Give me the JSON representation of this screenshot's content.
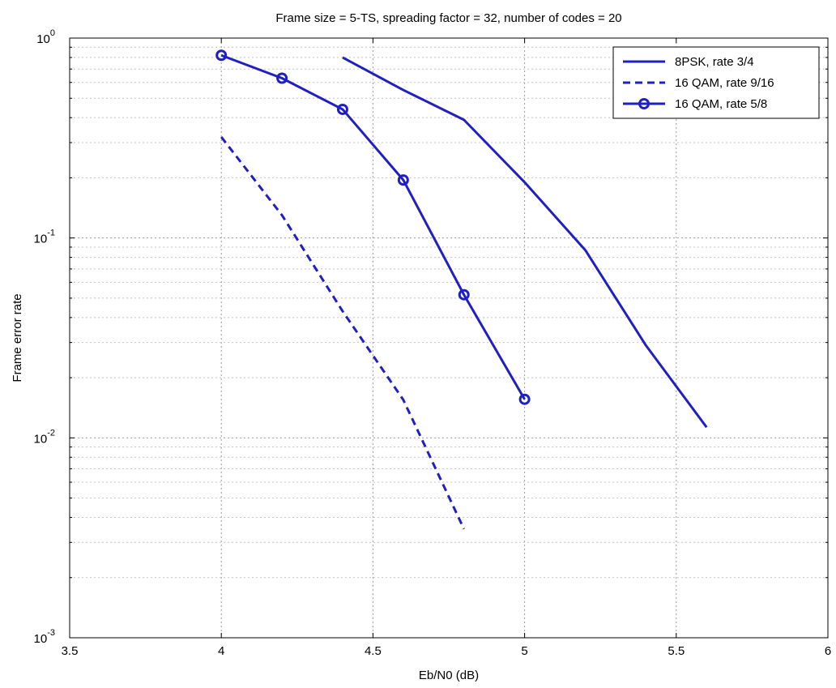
{
  "chart_data": {
    "type": "line",
    "title": "Frame size = 5-TS, spreading factor = 32, number of codes = 20",
    "xlabel": "Eb/N0 (dB)",
    "ylabel": "Frame error rate",
    "xlim": [
      3.5,
      6
    ],
    "ylim": [
      0.001,
      1
    ],
    "yscale": "log",
    "grid": true,
    "legend_position": "top-right",
    "x_ticks": [
      "3.5",
      "4",
      "4.5",
      "5",
      "5.5",
      "6"
    ],
    "y_ticks": [
      {
        "base": "10",
        "exp": "0",
        "value": 1
      },
      {
        "base": "10",
        "exp": "-1",
        "value": 0.1
      },
      {
        "base": "10",
        "exp": "-2",
        "value": 0.01
      },
      {
        "base": "10",
        "exp": "-3",
        "value": 0.001
      }
    ],
    "series": [
      {
        "name": "8PSK, rate 3/4",
        "color": "#2020c0",
        "line_style": "solid",
        "marker": "none",
        "x": [
          4.4,
          4.6,
          4.8,
          5.0,
          5.2,
          5.4,
          5.6
        ],
        "y": [
          0.8,
          0.55,
          0.39,
          0.19,
          0.087,
          0.029,
          0.0113
        ]
      },
      {
        "name": "16 QAM, rate 9/16",
        "color": "#2020c0",
        "line_style": "dashed",
        "marker": "none",
        "x": [
          4.0,
          4.2,
          4.4,
          4.6,
          4.8
        ],
        "y": [
          0.32,
          0.13,
          0.043,
          0.0155,
          0.0035
        ]
      },
      {
        "name": "16 QAM, rate 5/8",
        "color": "#2020c0",
        "line_style": "solid",
        "marker": "circle",
        "x": [
          4.0,
          4.2,
          4.4,
          4.6,
          4.8,
          5.0
        ],
        "y": [
          0.82,
          0.63,
          0.44,
          0.195,
          0.052,
          0.0156
        ]
      }
    ]
  }
}
